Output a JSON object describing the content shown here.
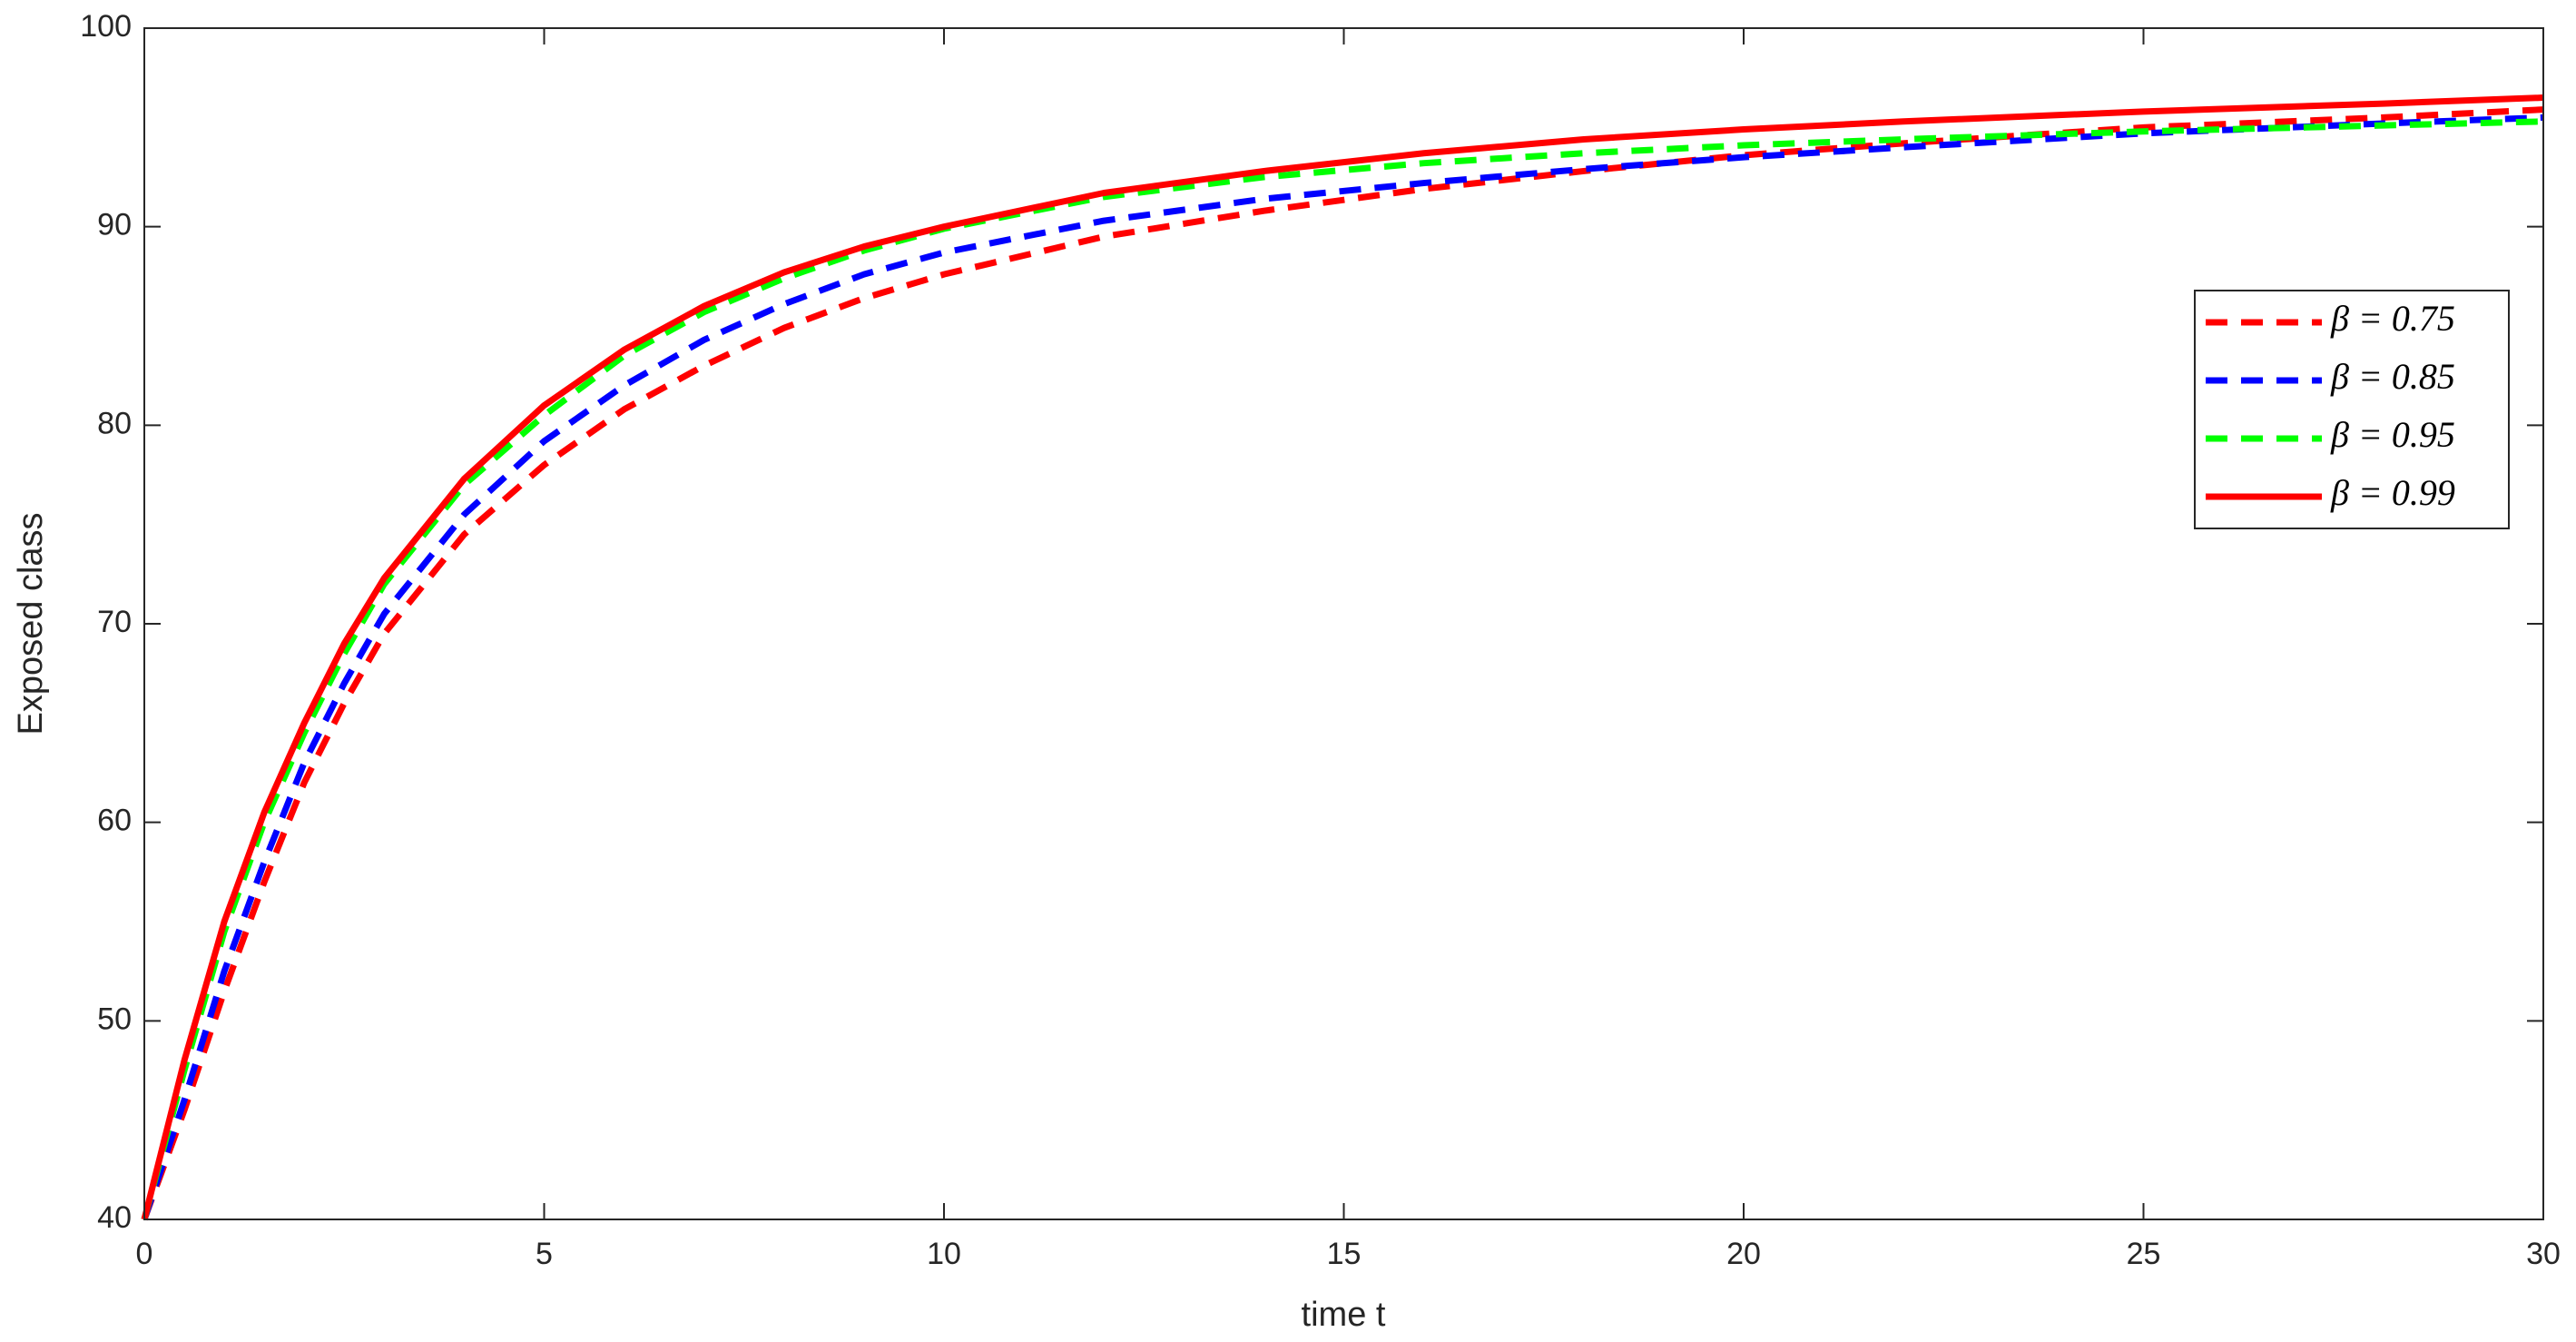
{
  "chart_data": {
    "type": "line",
    "x_label": "time t",
    "y_label": "Exposed class",
    "x": [
      0,
      0.5,
      1,
      1.5,
      2,
      2.5,
      3,
      4,
      5,
      6,
      7,
      8,
      9,
      10,
      12,
      14,
      16,
      18,
      20,
      22,
      25,
      28,
      30
    ],
    "series": [
      {
        "name": "β = 0.75",
        "color": "#ff0000",
        "line_style": "dashed",
        "values": [
          40,
          45.5,
          51.5,
          57,
          62,
          66,
          69.5,
          74.5,
          78,
          80.8,
          83,
          84.9,
          86.4,
          87.6,
          89.5,
          90.8,
          91.9,
          92.8,
          93.6,
          94.2,
          95,
          95.5,
          95.9
        ]
      },
      {
        "name": "β = 0.85",
        "color": "#0000ff",
        "line_style": "dashed",
        "values": [
          40,
          46,
          52.5,
          58,
          63,
          67,
          70.5,
          75.5,
          79.2,
          82,
          84.3,
          86.1,
          87.6,
          88.7,
          90.3,
          91.4,
          92.2,
          92.9,
          93.5,
          94,
          94.7,
          95.2,
          95.5
        ]
      },
      {
        "name": "β = 0.95",
        "color": "#00ff00",
        "line_style": "dashed",
        "values": [
          40,
          47.5,
          54.5,
          60,
          64.5,
          68.5,
          72,
          77,
          80.5,
          83.5,
          85.7,
          87.4,
          88.8,
          89.9,
          91.5,
          92.5,
          93.2,
          93.7,
          94.1,
          94.4,
          94.8,
          95.1,
          95.3
        ]
      },
      {
        "name": "β = 0.99",
        "color": "#ff0000",
        "line_style": "solid",
        "values": [
          40,
          48,
          55,
          60.5,
          65,
          69,
          72.3,
          77.3,
          81,
          83.8,
          86,
          87.7,
          89,
          90,
          91.7,
          92.8,
          93.7,
          94.4,
          94.9,
          95.3,
          95.8,
          96.2,
          96.5
        ]
      }
    ],
    "xlim": [
      0,
      30
    ],
    "xticks": [
      0,
      5,
      10,
      15,
      20,
      25,
      30
    ],
    "ylim": [
      40,
      100
    ],
    "yticks": [
      40,
      50,
      60,
      70,
      80,
      90,
      100
    ],
    "grid": false,
    "legend_position": "right"
  }
}
